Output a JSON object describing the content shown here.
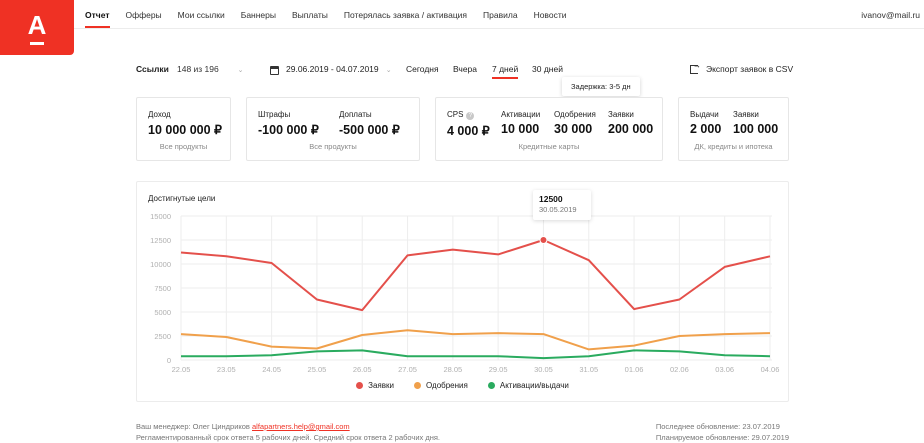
{
  "brand": {
    "logo_letter": "А",
    "color": "#ef3124"
  },
  "nav": {
    "items": [
      "Отчет",
      "Офферы",
      "Мои ссылки",
      "Баннеры",
      "Выплаты",
      "Потерялась заявка / активация",
      "Правила",
      "Новости"
    ],
    "active_index": 0,
    "user_email": "ivanov@mail.ru"
  },
  "filters": {
    "links_label": "Ссылки",
    "links_value": "148 из 196",
    "date_range": "29.06.2019 - 04.07.2019",
    "periods": [
      "Сегодня",
      "Вчера",
      "7 дней",
      "30 дней"
    ],
    "active_period": "7 дней",
    "export_label": "Экспорт заявок в CSV"
  },
  "tooltip_delay": "Задержка: 3-5 дн",
  "cards": [
    {
      "metrics": [
        {
          "label": "Доход",
          "value": "10 000 000 ₽"
        }
      ],
      "caption": "Все продукты"
    },
    {
      "metrics": [
        {
          "label": "Штрафы",
          "value": "-100 000 ₽"
        },
        {
          "label": "Доплаты",
          "value": "-500 000 ₽"
        }
      ],
      "caption": "Все продукты"
    },
    {
      "metrics": [
        {
          "label": "CPS",
          "value": "4 000 ₽"
        },
        {
          "label": "Активации",
          "value": "10 000"
        },
        {
          "label": "Одобрения",
          "value": "30 000"
        },
        {
          "label": "Заявки",
          "value": "200 000"
        }
      ],
      "caption": "Кредитные карты"
    },
    {
      "metrics": [
        {
          "label": "Выдачи",
          "value": "2 000"
        },
        {
          "label": "Заявки",
          "value": "100 000"
        }
      ],
      "caption": "ДК, кредиты и ипотека"
    }
  ],
  "chart_data": {
    "type": "line",
    "title": "Достигнутые цели",
    "categories": [
      "22.05",
      "23.05",
      "24.05",
      "25.05",
      "26.05",
      "27.05",
      "28.05",
      "29.05",
      "30.05",
      "31.05",
      "01.06",
      "02.06",
      "03.06",
      "04.06"
    ],
    "ylim": [
      0,
      15000
    ],
    "yticks": [
      0,
      2500,
      5000,
      7500,
      10000,
      12500,
      15000
    ],
    "series": [
      {
        "name": "Заявки",
        "color": "#e4504b",
        "values": [
          11200,
          10800,
          10100,
          6300,
          5200,
          10900,
          11500,
          11000,
          12500,
          10400,
          5300,
          6300,
          9700,
          10800
        ]
      },
      {
        "name": "Одобрения",
        "color": "#f0a04b",
        "values": [
          2700,
          2400,
          1400,
          1200,
          2600,
          3100,
          2700,
          2800,
          2700,
          1100,
          1500,
          2500,
          2700,
          2800
        ]
      },
      {
        "name": "Активации/выдачи",
        "color": "#2aab5f",
        "values": [
          400,
          400,
          500,
          900,
          1000,
          400,
          400,
          400,
          200,
          400,
          1000,
          900,
          500,
          400
        ]
      }
    ],
    "highlight": {
      "value": "12500",
      "date": "30.05.2019"
    },
    "grid": true,
    "legend": "bottom"
  },
  "footer": {
    "manager_prefix": "Ваш менеджер: Олег Циндриков",
    "manager_email": "alfapartners.help@gmail.com",
    "sla_text": "Регламентированный срок ответа 5 рабочих дней. Средний срок ответа 2 рабочих дня.",
    "last_update": "Последнее обновление: 23.07.2019",
    "planned_update": "Планируемое обновление: 29.07.2019"
  }
}
